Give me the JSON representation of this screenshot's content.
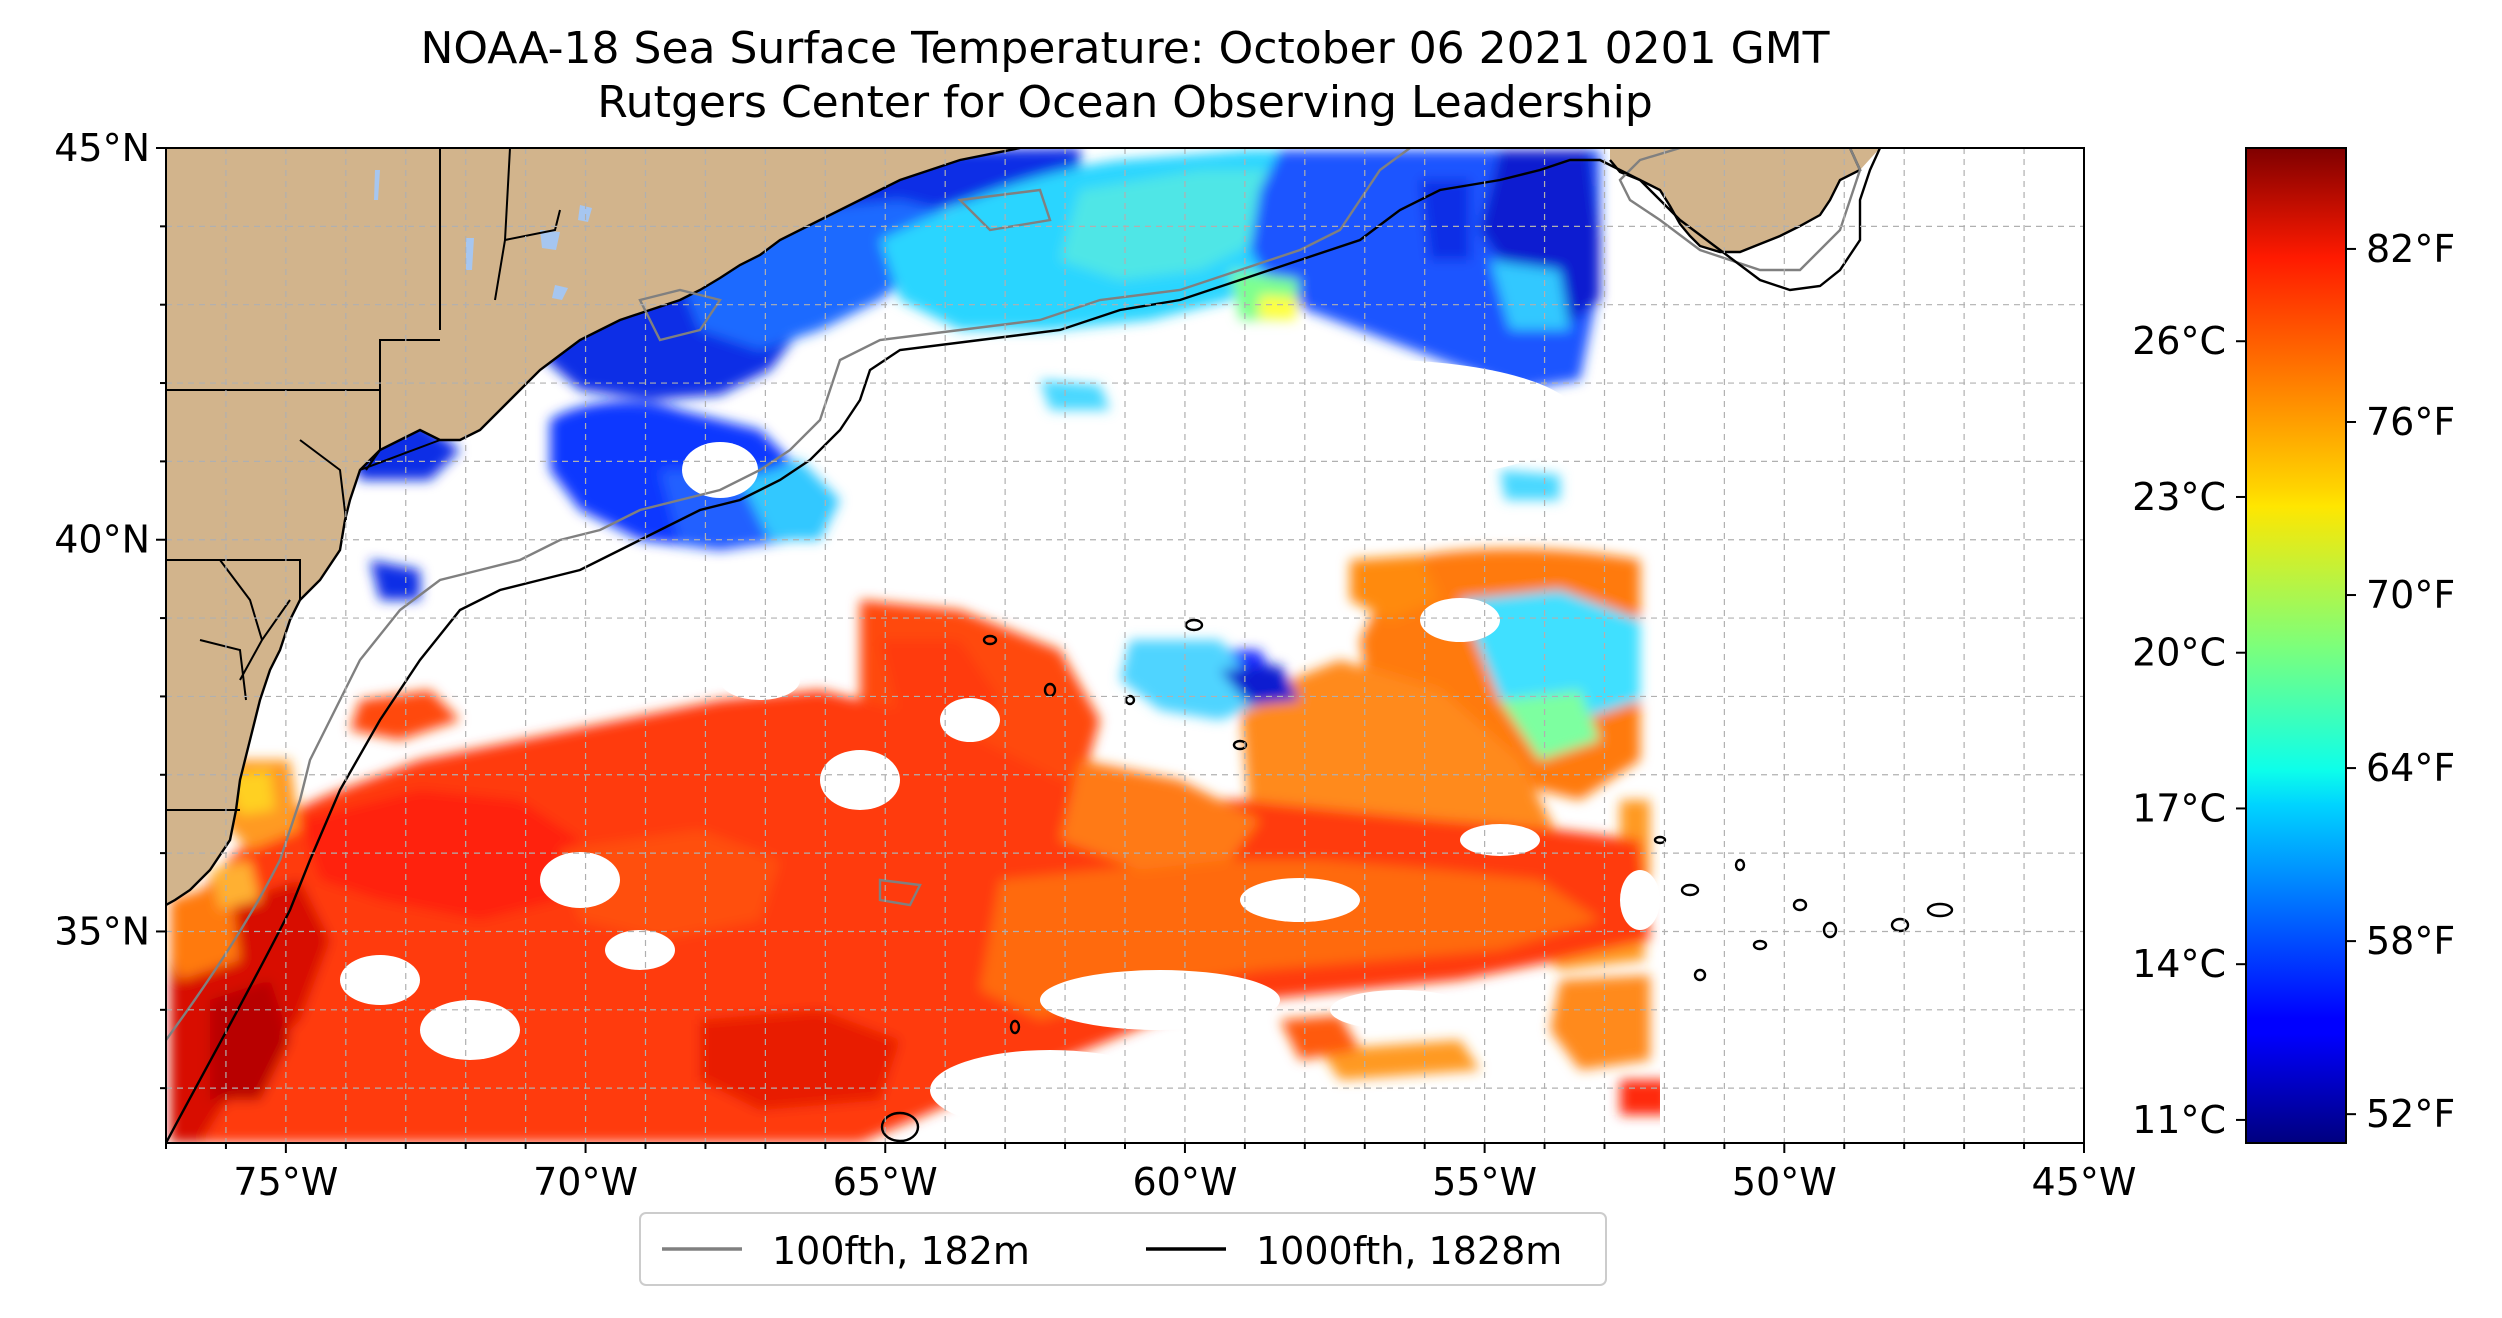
{
  "title": {
    "line1": "NOAA-18 Sea Surface Temperature: October 06 2021 0201 GMT",
    "line2": "Rutgers Center for Ocean Observing Leadership"
  },
  "chart_data": {
    "type": "heatmap",
    "title": "NOAA-18 Sea Surface Temperature: October 06 2021 0201 GMT",
    "subtitle": "Rutgers Center for Ocean Observing Leadership",
    "x_ticks": [
      "75°W",
      "70°W",
      "65°W",
      "60°W",
      "55°W",
      "50°W",
      "45°W"
    ],
    "x_tick_values": [
      -75,
      -70,
      -65,
      -60,
      -55,
      -50,
      -45
    ],
    "y_ticks": [
      "35°N",
      "40°N",
      "45°N"
    ],
    "y_tick_values": [
      35,
      40,
      45
    ],
    "xlim": [
      -77,
      -45
    ],
    "ylim": [
      32.3,
      45
    ],
    "grid": true,
    "colorbar": {
      "colormap": "jet",
      "range_f": [
        51,
        85.5
      ],
      "fahrenheit_ticks": [
        "52°F",
        "58°F",
        "64°F",
        "70°F",
        "76°F",
        "82°F"
      ],
      "fahrenheit_values": [
        52,
        58,
        64,
        70,
        76,
        82
      ],
      "celsius_ticks": [
        "11°C",
        "14°C",
        "17°C",
        "20°C",
        "23°C",
        "26°C"
      ],
      "celsius_values": [
        11,
        14,
        17,
        20,
        23,
        26
      ]
    },
    "legend": {
      "placement": "bottom-center",
      "items": [
        {
          "label": "100fth, 182m",
          "color": "#808080"
        },
        {
          "label": "1000fth, 1828m",
          "color": "#000000"
        }
      ]
    },
    "land_color": "#d2b48c",
    "water_body_color": "#a6c6f0"
  }
}
